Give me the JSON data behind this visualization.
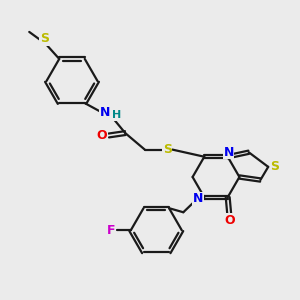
{
  "bg_color": "#ebebeb",
  "bond_color": "#1a1a1a",
  "bond_width": 1.6,
  "N_color": "#0000ee",
  "O_color": "#ee0000",
  "S_color": "#bbbb00",
  "F_color": "#cc00cc",
  "H_color": "#008888",
  "figsize": [
    3.0,
    3.0
  ],
  "dpi": 100,
  "xlim": [
    0,
    10
  ],
  "ylim": [
    0,
    10
  ]
}
